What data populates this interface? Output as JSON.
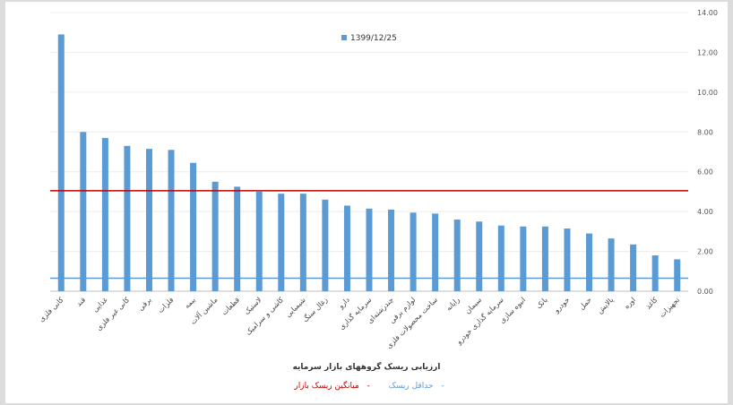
{
  "chart_data": {
    "type": "bar",
    "title": "ارزیابی ریسک گروههای بازار سرمایه",
    "series": [
      {
        "name": "1399/12/25",
        "color": "#5b9bd5"
      }
    ],
    "categories": [
      "کانی فلزی",
      "قند",
      "غذایی",
      "کانی غیر فلزی",
      "برقی",
      "فلزات",
      "بیمه",
      "ماشین آلات",
      "قطعات",
      "لاستیک",
      "کاشی و سرامیک",
      "شیمیایی",
      "زغال سنگ",
      "دارو",
      "سرمایه گذاری",
      "چندرشته‌ای",
      "لوازم برقی",
      "ساخت محصولات فلزی",
      "رایانه",
      "سیمان",
      "سرمایه گذاری خودرو",
      "انبوه سازی",
      "بانک",
      "خودرو",
      "حمل",
      "پالایش",
      "اوره",
      "کاغذ",
      "تجهیزات"
    ],
    "values": [
      12.9,
      8.0,
      7.7,
      7.3,
      7.15,
      7.1,
      6.45,
      5.5,
      5.25,
      5.0,
      4.9,
      4.9,
      4.6,
      4.3,
      4.15,
      4.1,
      3.95,
      3.9,
      3.6,
      3.5,
      3.3,
      3.25,
      3.25,
      3.15,
      2.9,
      2.65,
      2.35,
      1.8,
      1.6
    ],
    "ylim": [
      0,
      14
    ],
    "yticks": [
      "0.00",
      "2.00",
      "4.00",
      "6.00",
      "8.00",
      "10.00",
      "12.00",
      "14.00"
    ],
    "reference_lines": [
      {
        "name": "میانگین ریسک بازار",
        "value": 5.05,
        "color": "#c00000"
      },
      {
        "name": "حداقل ریسک",
        "value": 0.65,
        "color": "#5b9bd5"
      }
    ],
    "y_axis_side": "right",
    "legend_position": "top-right",
    "grid": true
  }
}
